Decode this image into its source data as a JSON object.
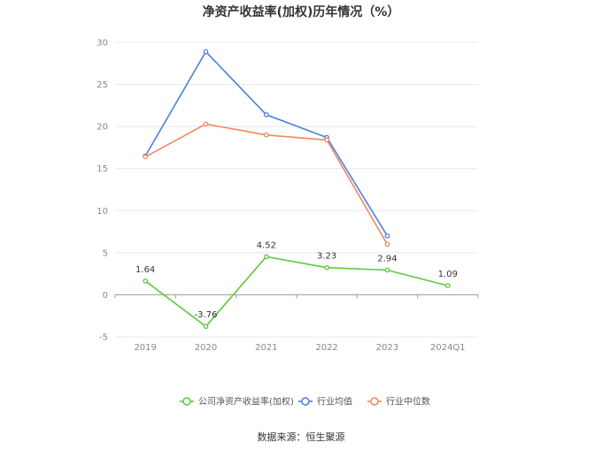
{
  "chart_data": {
    "type": "line",
    "title": "净资产收益率(加权)历年情况（%）",
    "categories": [
      "2019",
      "2020",
      "2021",
      "2022",
      "2023",
      "2024Q1"
    ],
    "ylim": [
      -5,
      30
    ],
    "yticks": [
      -5,
      0,
      5,
      10,
      15,
      20,
      25,
      30
    ],
    "grid": true,
    "legend_position": "bottom",
    "series": [
      {
        "name": "公司净资产收益率(加权)",
        "color": "#5dc93a",
        "values": [
          1.64,
          -3.76,
          4.52,
          3.23,
          2.94,
          1.09
        ],
        "labels": [
          "1.64",
          "-3.76",
          "4.52",
          "3.23",
          "2.94",
          "1.09"
        ]
      },
      {
        "name": "行业均值",
        "color": "#4a7fe0",
        "values": [
          16.5,
          28.9,
          21.4,
          18.7,
          7.0,
          null
        ]
      },
      {
        "name": "行业中位数",
        "color": "#f4875c",
        "values": [
          16.4,
          20.3,
          19.0,
          18.4,
          6.0,
          null
        ]
      }
    ]
  },
  "source_note": "数据来源：恒生聚源"
}
